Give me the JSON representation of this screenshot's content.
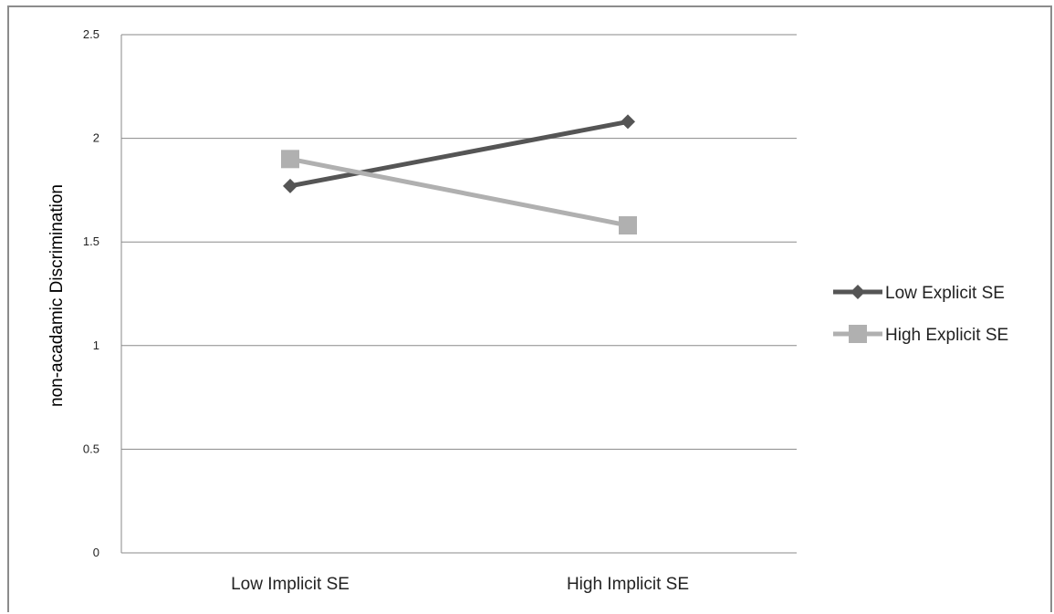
{
  "chart_data": {
    "type": "line",
    "title": "",
    "xlabel": "",
    "ylabel": "non-acadamic Discrimination",
    "categories": [
      "Low Implicit SE",
      "High Implicit SE"
    ],
    "ylim": [
      0,
      2.5
    ],
    "yticks": [
      "0",
      "0.5",
      "1",
      "1.5",
      "2",
      "2.5"
    ],
    "grid": true,
    "legend_position": "right",
    "series": [
      {
        "name": "Low Explicit SE",
        "values": [
          1.77,
          2.08
        ],
        "color": "#555555",
        "marker": "diamond"
      },
      {
        "name": "High Explicit SE",
        "values": [
          1.9,
          1.58
        ],
        "color": "#b0b0b0",
        "marker": "square"
      }
    ]
  }
}
